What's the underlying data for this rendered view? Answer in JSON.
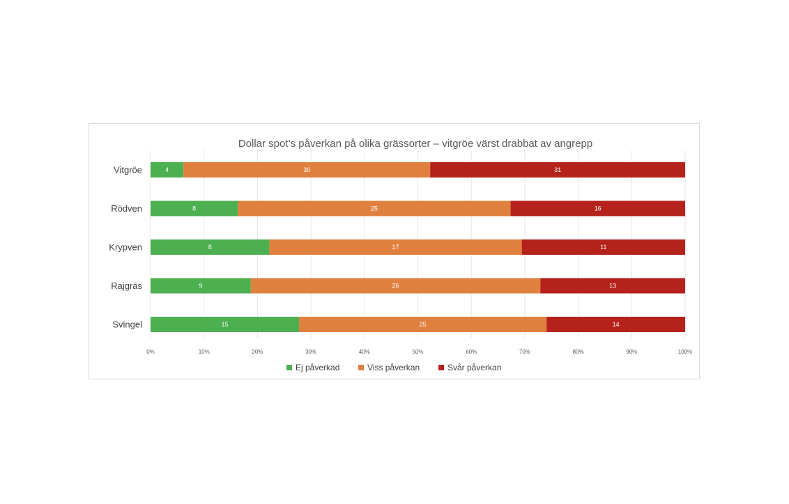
{
  "chart_data": {
    "type": "bar",
    "orientation": "horizontal",
    "stacked": "percent",
    "title": "Dollar spot’s påverkan på olika grässorter – vitgröe värst drabbat av angrepp",
    "xlabel": "",
    "ylabel": "",
    "categories": [
      "Vitgröe",
      "Rödven",
      "Krypven",
      "Rajgräs",
      "Svingel"
    ],
    "series": [
      {
        "name": "Ej påverkad",
        "color": "#4caf50",
        "values": [
          4,
          8,
          8,
          9,
          15
        ]
      },
      {
        "name": "Viss påverkan",
        "color": "#e0803f",
        "values": [
          30,
          25,
          17,
          26,
          25
        ]
      },
      {
        "name": "Svår påverkan",
        "color": "#b5211b",
        "values": [
          31,
          16,
          11,
          13,
          14
        ]
      }
    ],
    "xlim": [
      0,
      100
    ],
    "x_ticks": [
      "0%",
      "10%",
      "20%",
      "30%",
      "40%",
      "50%",
      "60%",
      "70%",
      "80%",
      "90%",
      "100%"
    ],
    "grid": true,
    "legend_position": "bottom"
  }
}
